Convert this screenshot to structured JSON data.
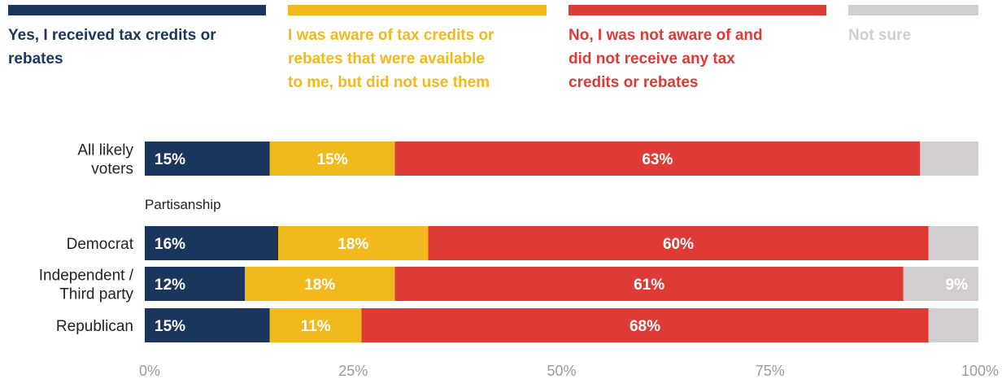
{
  "chart_data": {
    "type": "bar",
    "orientation": "horizontal",
    "stacked": true,
    "title": "",
    "xlabel": "",
    "ylabel": "",
    "xlim": [
      0,
      100
    ],
    "x_ticks": [
      "0%",
      "25%",
      "50%",
      "75%",
      "100%"
    ],
    "legend_placement": "top",
    "categories": [
      "All likely voters",
      "Democrat",
      "Independent / Third party",
      "Republican"
    ],
    "group_label": "Partisanship",
    "series": [
      {
        "name": "Yes, I received tax credits or rebates",
        "color": "#1b365d",
        "values": [
          15,
          16,
          12,
          15
        ],
        "labels": [
          "15%",
          "16%",
          "12%",
          "15%"
        ]
      },
      {
        "name": "I was aware of tax credits or rebates that were available to me, but did not use them",
        "color": "#f2b91d",
        "values": [
          15,
          18,
          18,
          11
        ],
        "labels": [
          "15%",
          "18%",
          "18%",
          "11%"
        ]
      },
      {
        "name": "No, I was not aware of and did not receive any tax credits or rebates",
        "color": "#de3a36",
        "values": [
          63,
          60,
          61,
          68
        ],
        "labels": [
          "63%",
          "60%",
          "61%",
          "68%"
        ]
      },
      {
        "name": "Not sure",
        "color": "#d2cdd0",
        "values": [
          7,
          6,
          9,
          7
        ],
        "labels": [
          "",
          "",
          "9%",
          ""
        ]
      }
    ]
  }
}
